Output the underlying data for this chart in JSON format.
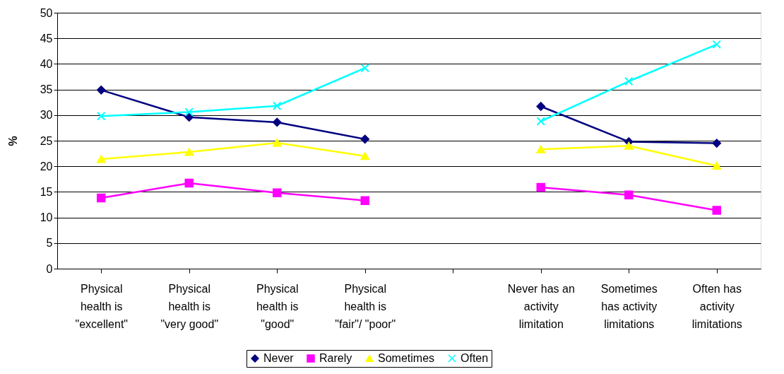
{
  "chart_data": {
    "type": "line",
    "ylabel": "%",
    "categories": [
      "Physical\nhealth is\n\"excellent\"",
      "Physical\nhealth is\n\"very good\"",
      "Physical\nhealth is\n\"good\"",
      "Physical\nhealth is\n\"fair\"/ \"poor\"",
      null,
      "Never has an\nactivity\nlimitation",
      "Sometimes\nhas activity\nlimitations",
      "Often has\nactivity\nlimitations"
    ],
    "series": [
      {
        "name": "Never",
        "color": "#000080",
        "marker": "diamond",
        "values": [
          34.9,
          29.6,
          28.6,
          25.3,
          null,
          31.7,
          24.8,
          24.5
        ]
      },
      {
        "name": "Rarely",
        "color": "#ff00ff",
        "marker": "square",
        "values": [
          13.8,
          16.7,
          14.8,
          13.3,
          null,
          15.9,
          14.4,
          11.4
        ]
      },
      {
        "name": "Sometimes",
        "color": "#ffff00",
        "marker": "triangle",
        "values": [
          21.4,
          22.8,
          24.6,
          22.0,
          null,
          23.3,
          24.0,
          20.1
        ]
      },
      {
        "name": "Often",
        "color": "#00ffff",
        "marker": "cross",
        "values": [
          29.8,
          30.6,
          31.8,
          39.2,
          null,
          28.8,
          36.6,
          43.8
        ]
      }
    ],
    "ylim": [
      0,
      50
    ],
    "yticks": [
      0,
      5,
      10,
      15,
      20,
      25,
      30,
      35,
      40,
      45,
      50
    ],
    "grid": "y",
    "legend": "bottom",
    "line_style": "solid"
  }
}
